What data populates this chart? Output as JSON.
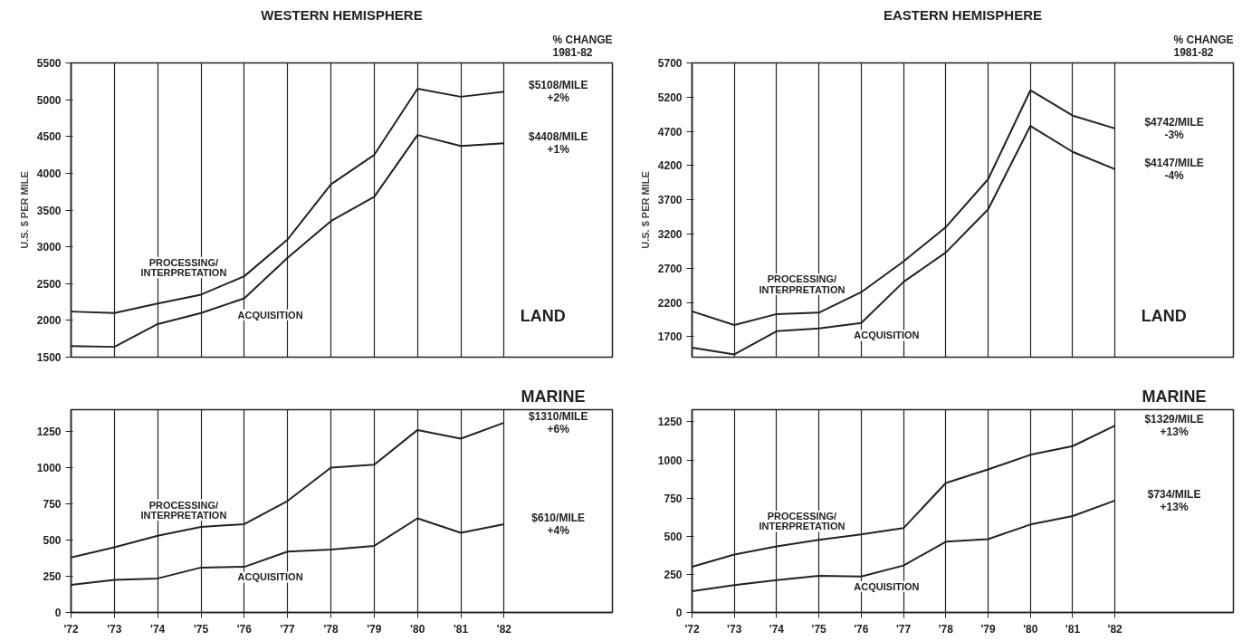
{
  "chart_data": [
    {
      "type": "line",
      "title": "WESTERN HEMISPHERE",
      "ylabel": "U.S. $ PER MILE",
      "x": [
        1972,
        1973,
        1974,
        1975,
        1976,
        1977,
        1978,
        1979,
        1980,
        1981,
        1982
      ],
      "xlim": [
        1972,
        1984.5
      ],
      "xticks": [
        {
          "value": 1972,
          "label": null
        },
        {
          "value": 1973,
          "label": null
        },
        {
          "value": 1974,
          "label": null
        },
        {
          "value": 1975,
          "label": null
        },
        {
          "value": 1976,
          "label": null
        },
        {
          "value": 1977,
          "label": null
        },
        {
          "value": 1978,
          "label": null
        },
        {
          "value": 1979,
          "label": null
        },
        {
          "value": 1980,
          "label": null
        },
        {
          "value": 1981,
          "label": null
        },
        {
          "value": 1982,
          "label": null
        }
      ],
      "ylim": [
        1500,
        5500
      ],
      "yticks": [
        1500,
        2000,
        2500,
        3000,
        3500,
        4000,
        4500,
        5000,
        5500
      ],
      "tick_labels": "y",
      "grid": "x",
      "series": [
        {
          "name": "PROCESSING/\nINTERPRETATION",
          "color": "#222222",
          "values": [
            2120,
            2100,
            2230,
            2350,
            2600,
            3100,
            3850,
            4250,
            5150,
            5040,
            5108
          ]
        },
        {
          "name": "ACQUISITION",
          "color": "#222222",
          "values": [
            1650,
            1640,
            1950,
            2100,
            2300,
            2850,
            3350,
            3680,
            4520,
            4370,
            4408
          ]
        }
      ],
      "annotations": [
        "% CHANGE\n1981-82",
        "LAND",
        "$5108/MILE\n+2%",
        "$4408/MILE\n+1%"
      ]
    },
    {
      "type": "line",
      "x": [
        1972,
        1973,
        1974,
        1975,
        1976,
        1977,
        1978,
        1979,
        1980,
        1981,
        1982
      ],
      "xlim": [
        1972,
        1984.5
      ],
      "xticks": [
        {
          "value": 1972,
          "label": "'72"
        },
        {
          "value": 1973,
          "label": "'73"
        },
        {
          "value": 1974,
          "label": "'74"
        },
        {
          "value": 1975,
          "label": "'75"
        },
        {
          "value": 1976,
          "label": "'76"
        },
        {
          "value": 1977,
          "label": "'77"
        },
        {
          "value": 1978,
          "label": "'78"
        },
        {
          "value": 1979,
          "label": "'79"
        },
        {
          "value": 1980,
          "label": "'80"
        },
        {
          "value": 1981,
          "label": "'81"
        },
        {
          "value": 1982,
          "label": "'82"
        }
      ],
      "ylim": [
        0,
        1400
      ],
      "yticks": [
        0,
        250,
        500,
        750,
        1000,
        1250
      ],
      "grid": "x",
      "series": [
        {
          "name": "PROCESSING/\nINTERPRETATION",
          "color": "#222222",
          "values": [
            380,
            450,
            530,
            590,
            610,
            770,
            1000,
            1020,
            1260,
            1200,
            1310
          ]
        },
        {
          "name": "ACQUISITION",
          "color": "#222222",
          "values": [
            190,
            225,
            235,
            310,
            315,
            420,
            435,
            460,
            650,
            550,
            610
          ]
        }
      ],
      "annotations": [
        "MARINE",
        "$1310/MILE\n+6%",
        "$610/MILE\n+4%"
      ]
    },
    {
      "type": "line",
      "title": "EASTERN HEMISPHERE",
      "ylabel": "U.S. $ PER MILE",
      "x": [
        1972,
        1973,
        1974,
        1975,
        1976,
        1977,
        1978,
        1979,
        1980,
        1981,
        1982
      ],
      "xlim": [
        1972,
        1984.8
      ],
      "xticks": [
        {
          "value": 1972,
          "label": null
        },
        {
          "value": 1973,
          "label": null
        },
        {
          "value": 1974,
          "label": null
        },
        {
          "value": 1975,
          "label": null
        },
        {
          "value": 1976,
          "label": null
        },
        {
          "value": 1977,
          "label": null
        },
        {
          "value": 1978,
          "label": null
        },
        {
          "value": 1979,
          "label": null
        },
        {
          "value": 1980,
          "label": null
        },
        {
          "value": 1981,
          "label": null
        },
        {
          "value": 1982,
          "label": null
        }
      ],
      "ylim": [
        1400,
        5700
      ],
      "yticks": [
        1700,
        2200,
        2700,
        3200,
        3700,
        4200,
        4700,
        5200,
        5700
      ],
      "tick_labels": "y",
      "grid": "x",
      "series": [
        {
          "name": "PROCESSING/\nINTERPRETATION",
          "color": "#222222",
          "values": [
            2070,
            1870,
            2030,
            2050,
            2350,
            2800,
            3300,
            4000,
            5300,
            4930,
            4742
          ]
        },
        {
          "name": "ACQUISITION",
          "color": "#222222",
          "values": [
            1540,
            1440,
            1780,
            1820,
            1900,
            2500,
            2930,
            3560,
            4780,
            4400,
            4147
          ]
        }
      ],
      "annotations": [
        "% CHANGE\n1981-82",
        "LAND",
        "$4742/MILE\n-3%",
        "$4147/MILE\n-4%"
      ]
    },
    {
      "type": "line",
      "x": [
        1972,
        1973,
        1974,
        1975,
        1976,
        1977,
        1978,
        1979,
        1980,
        1981,
        1982
      ],
      "xlim": [
        1972,
        1984.8
      ],
      "xticks": [
        {
          "value": 1972,
          "label": "'72"
        },
        {
          "value": 1973,
          "label": "'73"
        },
        {
          "value": 1974,
          "label": "'74"
        },
        {
          "value": 1975,
          "label": "'75"
        },
        {
          "value": 1976,
          "label": "'76"
        },
        {
          "value": 1977,
          "label": "'77"
        },
        {
          "value": 1978,
          "label": "'78"
        },
        {
          "value": 1979,
          "label": "'79"
        },
        {
          "value": 1980,
          "label": "'80"
        },
        {
          "value": 1981,
          "label": "'81"
        },
        {
          "value": 1982,
          "label": "'82"
        }
      ],
      "ylim": [
        0,
        1330
      ],
      "yticks": [
        0,
        250,
        500,
        750,
        1000,
        1250
      ],
      "grid": "x",
      "series": [
        {
          "name": "PROCESSING/\nINTERPRETATION",
          "color": "#222222",
          "values": [
            300,
            380,
            433,
            476,
            512,
            553,
            849,
            938,
            1034,
            1091,
            1225
          ]
        },
        {
          "name": "ACQUISITION",
          "color": "#222222",
          "values": [
            139,
            180,
            212,
            240,
            236,
            308,
            464,
            481,
            577,
            632,
            734
          ]
        }
      ],
      "annotations": [
        "MARINE",
        "$1329/MILE\n+13%",
        "$734/MILE\n+13%"
      ]
    }
  ]
}
